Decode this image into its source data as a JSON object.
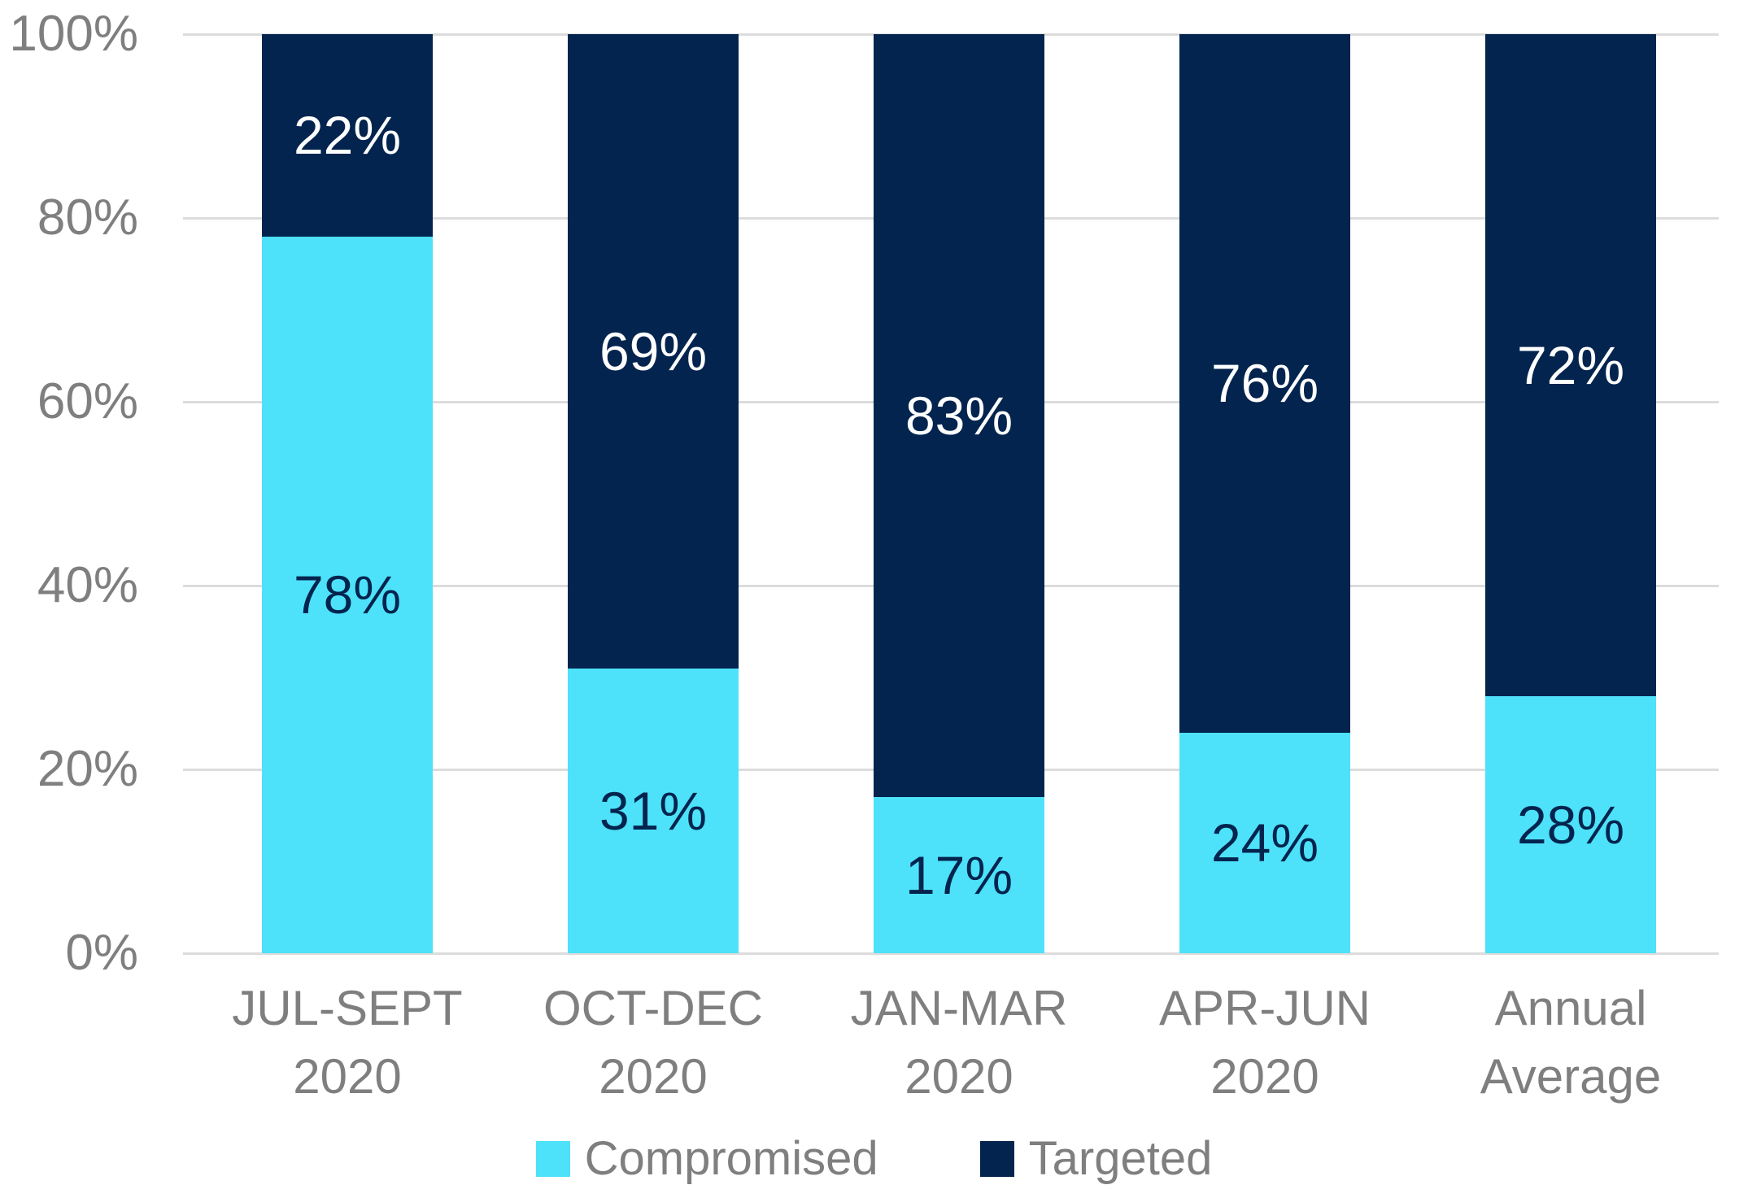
{
  "chart_data": {
    "type": "bar",
    "subtype": "stacked-100-percent-column",
    "categories": [
      [
        "JUL-SEPT",
        "2020"
      ],
      [
        "OCT-DEC",
        "2020"
      ],
      [
        "JAN-MAR",
        "2020"
      ],
      [
        "APR-JUN",
        "2020"
      ],
      [
        "Annual",
        "Average"
      ]
    ],
    "series": [
      {
        "name": "Compromised",
        "color": "#4DE2FA",
        "label_color": "#03244E",
        "values": [
          78,
          31,
          17,
          24,
          28
        ],
        "labels": [
          "78%",
          "31%",
          "17%",
          "24%",
          "28%"
        ]
      },
      {
        "name": "Targeted",
        "color": "#03244E",
        "label_color": "#FFFFFF",
        "values": [
          22,
          69,
          83,
          76,
          72
        ],
        "labels": [
          "22%",
          "69%",
          "83%",
          "76%",
          "72%"
        ]
      }
    ],
    "title": "",
    "xlabel": "",
    "ylabel": "",
    "ylim": [
      0,
      100
    ],
    "yticks": [
      "0%",
      "20%",
      "40%",
      "60%",
      "80%",
      "100%"
    ],
    "grid": true,
    "legend_position": "bottom",
    "colors": {
      "axis_text": "#7F7F7F",
      "gridline": "#DCDCDC",
      "background": "#FFFFFF"
    }
  },
  "legend": {
    "items": [
      {
        "label": "Compromised"
      },
      {
        "label": "Targeted"
      }
    ]
  }
}
